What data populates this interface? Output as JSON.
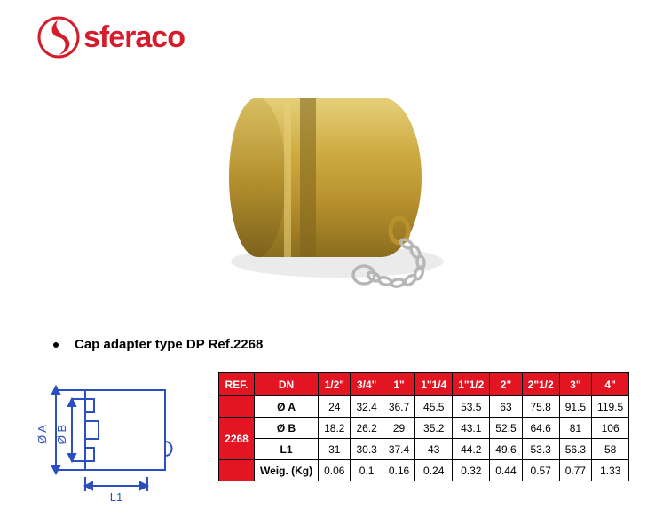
{
  "brand": {
    "name": "sferaco",
    "logo_color": "#d41c2c"
  },
  "caption": "Cap adapter type DP Ref.2268",
  "diagram": {
    "labels": {
      "diam_a": "Ø A",
      "diam_b": "Ø B",
      "length": "L1"
    },
    "stroke_color": "#2a4fbf",
    "stroke_width": 2
  },
  "table": {
    "header_bg": "#e31523",
    "header_fg": "#ffffff",
    "border_color": "#000000",
    "ref_header": "REF.",
    "dn_header": "DN",
    "ref_value": "2268",
    "sizes": [
      "1/2\"",
      "3/4\"",
      "1\"",
      "1\"1/4",
      "1\"1/2",
      "2\"",
      "2\"1/2",
      "3\"",
      "4\""
    ],
    "rows": [
      {
        "label": "Ø A",
        "values": [
          "24",
          "32.4",
          "36.7",
          "45.5",
          "53.5",
          "63",
          "75.8",
          "91.5",
          "119.5"
        ]
      },
      {
        "label": "Ø B",
        "values": [
          "18.2",
          "26.2",
          "29",
          "35.2",
          "43.1",
          "52.5",
          "64.6",
          "81",
          "106"
        ]
      },
      {
        "label": "L1",
        "values": [
          "31",
          "30.3",
          "37.4",
          "43",
          "44.2",
          "49.6",
          "53.3",
          "56.3",
          "58"
        ]
      },
      {
        "label": "Weig. (Kg)",
        "values": [
          "0.06",
          "0.1",
          "0.16",
          "0.24",
          "0.32",
          "0.44",
          "0.57",
          "0.77",
          "1.33"
        ]
      }
    ]
  },
  "product": {
    "body_color": "#c9a23a",
    "body_highlight": "#e6cf7a",
    "body_shadow": "#8a6d1f",
    "chain_color": "#c0c0c0"
  }
}
